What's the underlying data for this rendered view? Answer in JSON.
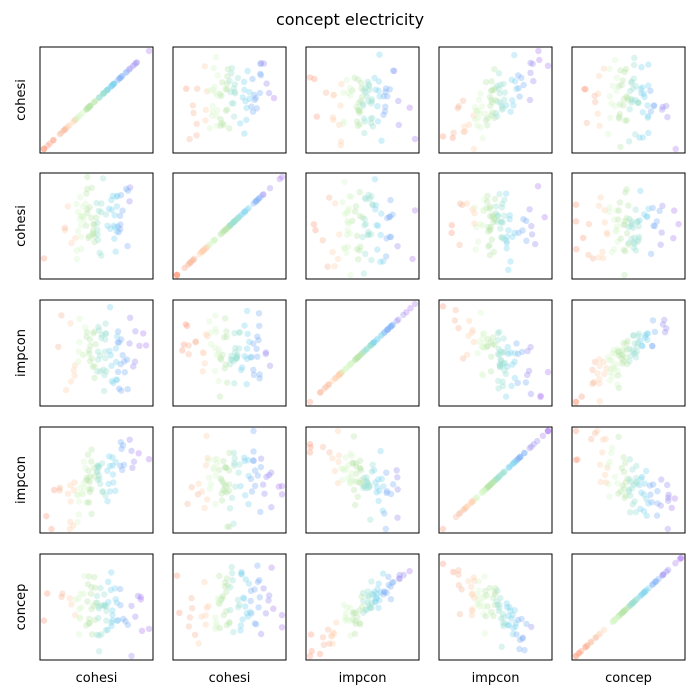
{
  "chart_data": {
    "type": "scatter",
    "title": "concept electricity",
    "variables": [
      "cohesi",
      "cohesi",
      "impcon",
      "impcon",
      "concep"
    ],
    "layout": "5x5 pair-plot, no tick labels, row labels on left, column labels on bottom",
    "point_colors": [
      "#ff9b7a",
      "#f7b595",
      "#ffd2b0",
      "#d8f5c9",
      "#b8e6a8",
      "#9be0d0",
      "#7fd3ee",
      "#7fb0f7",
      "#9b8ff2",
      "#b07ef0"
    ],
    "colors": {
      "frame": "#000000",
      "background": "#ffffff",
      "text": "#000000"
    },
    "point_opacity": 0.35,
    "panels": [
      {
        "row": 0,
        "col": 0,
        "relation": "identity",
        "x_range": [
          0,
          1
        ],
        "y_range": [
          0,
          1
        ]
      },
      {
        "row": 0,
        "col": 1,
        "relation": "weak-positive"
      },
      {
        "row": 0,
        "col": 2,
        "relation": "none"
      },
      {
        "row": 0,
        "col": 3,
        "relation": "moderate-positive"
      },
      {
        "row": 0,
        "col": 4,
        "relation": "weak-negative"
      },
      {
        "row": 1,
        "col": 0,
        "relation": "weak-positive"
      },
      {
        "row": 1,
        "col": 1,
        "relation": "identity"
      },
      {
        "row": 1,
        "col": 2,
        "relation": "none"
      },
      {
        "row": 1,
        "col": 3,
        "relation": "none"
      },
      {
        "row": 1,
        "col": 4,
        "relation": "none"
      },
      {
        "row": 2,
        "col": 0,
        "relation": "none"
      },
      {
        "row": 2,
        "col": 1,
        "relation": "none"
      },
      {
        "row": 2,
        "col": 2,
        "relation": "identity"
      },
      {
        "row": 2,
        "col": 3,
        "relation": "moderate-negative"
      },
      {
        "row": 2,
        "col": 4,
        "relation": "strong-positive"
      },
      {
        "row": 3,
        "col": 0,
        "relation": "moderate-positive"
      },
      {
        "row": 3,
        "col": 1,
        "relation": "none"
      },
      {
        "row": 3,
        "col": 2,
        "relation": "moderate-negative"
      },
      {
        "row": 3,
        "col": 3,
        "relation": "identity"
      },
      {
        "row": 3,
        "col": 4,
        "relation": "moderate-negative"
      },
      {
        "row": 4,
        "col": 0,
        "relation": "weak-negative"
      },
      {
        "row": 4,
        "col": 1,
        "relation": "none"
      },
      {
        "row": 4,
        "col": 2,
        "relation": "strong-positive"
      },
      {
        "row": 4,
        "col": 3,
        "relation": "moderate-negative"
      },
      {
        "row": 4,
        "col": 4,
        "relation": "identity"
      }
    ]
  }
}
